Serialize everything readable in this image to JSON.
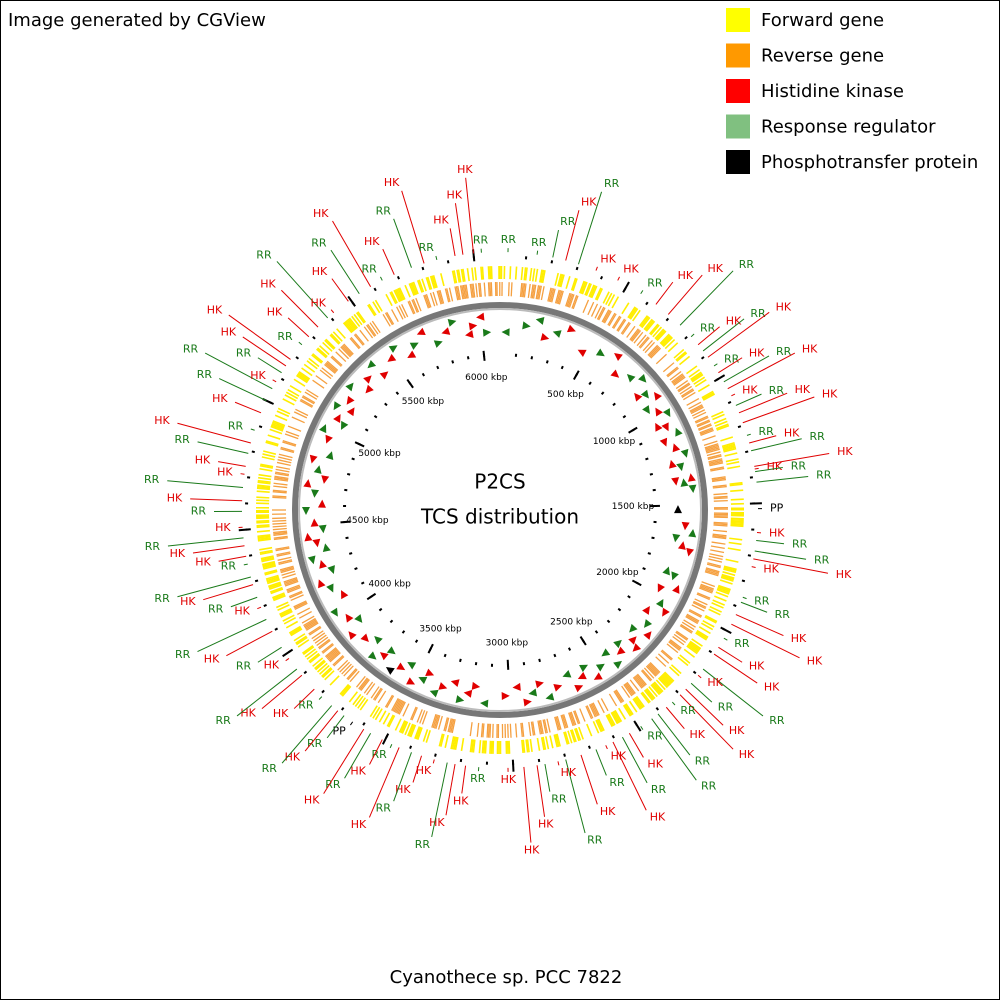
{
  "header": {
    "title": "Image generated by CGView"
  },
  "legend": [
    {
      "label": "Forward gene",
      "color": "#ffff00"
    },
    {
      "label": "Reverse gene",
      "color": "#ff9900"
    },
    {
      "label": "Histidine kinase",
      "color": "#ff0000"
    },
    {
      "label": "Response regulator",
      "color": "#80c080"
    },
    {
      "label": "Phosphotransfer protein",
      "color": "#000000"
    }
  ],
  "center": {
    "line1": "P2CS",
    "line2": "TCS distribution"
  },
  "footer": "Cyanothece sp. PCC 7822",
  "sequence_length_kbp": 6100,
  "scale": {
    "ticks": [
      {
        "value": 500,
        "label": "500 kbp"
      },
      {
        "value": 1000,
        "label": "1000 kbp"
      },
      {
        "value": 1500,
        "label": "1500 kbp"
      },
      {
        "value": 2000,
        "label": "2000 kbp"
      },
      {
        "value": 2500,
        "label": "2500 kbp"
      },
      {
        "value": 3000,
        "label": "3000 kbp"
      },
      {
        "value": 3500,
        "label": "3500 kbp"
      },
      {
        "value": 4000,
        "label": "4000 kbp"
      },
      {
        "value": 4500,
        "label": "4500 kbp"
      },
      {
        "value": 5000,
        "label": "5000 kbp"
      },
      {
        "value": 5500,
        "label": "5500 kbp"
      },
      {
        "value": 6000,
        "label": "6000 kbp"
      }
    ]
  },
  "label_colors": {
    "HK": "#e00000",
    "RR": "#1a7a1a",
    "PP": "#000000"
  },
  "features": [
    {
      "kbp": 30,
      "label": "RR"
    },
    {
      "kbp": 140,
      "label": "RR"
    },
    {
      "kbp": 200,
      "label": "RR"
    },
    {
      "kbp": 250,
      "label": "HK"
    },
    {
      "kbp": 300,
      "label": "RR"
    },
    {
      "kbp": 370,
      "label": "HK"
    },
    {
      "kbp": 460,
      "label": "HK"
    },
    {
      "kbp": 560,
      "label": "RR"
    },
    {
      "kbp": 630,
      "label": "HK"
    },
    {
      "kbp": 690,
      "label": "HK"
    },
    {
      "kbp": 750,
      "label": "RR"
    },
    {
      "kbp": 810,
      "label": "RR"
    },
    {
      "kbp": 850,
      "label": "HK"
    },
    {
      "kbp": 880,
      "label": "RR"
    },
    {
      "kbp": 910,
      "label": "HK"
    },
    {
      "kbp": 950,
      "label": "RR"
    },
    {
      "kbp": 980,
      "label": "HK"
    },
    {
      "kbp": 1020,
      "label": "RR"
    },
    {
      "kbp": 1050,
      "label": "HK"
    },
    {
      "kbp": 1080,
      "label": "HK"
    },
    {
      "kbp": 1120,
      "label": "RR"
    },
    {
      "kbp": 1150,
      "label": "HK"
    },
    {
      "kbp": 1190,
      "label": "HK"
    },
    {
      "kbp": 1240,
      "label": "RR"
    },
    {
      "kbp": 1270,
      "label": "HK"
    },
    {
      "kbp": 1300,
      "label": "RR"
    },
    {
      "kbp": 1360,
      "label": "HK"
    },
    {
      "kbp": 1370,
      "label": "HK"
    },
    {
      "kbp": 1380,
      "label": "RR"
    },
    {
      "kbp": 1420,
      "label": "RR"
    },
    {
      "kbp": 1520,
      "label": "PP"
    },
    {
      "kbp": 1610,
      "label": "HK"
    },
    {
      "kbp": 1640,
      "label": "RR"
    },
    {
      "kbp": 1680,
      "label": "RR"
    },
    {
      "kbp": 1710,
      "label": "HK"
    },
    {
      "kbp": 1740,
      "label": "HK"
    },
    {
      "kbp": 1860,
      "label": "RR"
    },
    {
      "kbp": 1880,
      "label": "RR"
    },
    {
      "kbp": 1930,
      "label": "HK"
    },
    {
      "kbp": 1970,
      "label": "HK"
    },
    {
      "kbp": 2030,
      "label": "RR"
    },
    {
      "kbp": 2070,
      "label": "HK"
    },
    {
      "kbp": 2100,
      "label": "HK"
    },
    {
      "kbp": 2170,
      "label": "RR"
    },
    {
      "kbp": 2200,
      "label": "HK"
    },
    {
      "kbp": 2240,
      "label": "RR"
    },
    {
      "kbp": 2270,
      "label": "HK"
    },
    {
      "kbp": 2300,
      "label": "HK"
    },
    {
      "kbp": 2340,
      "label": "RR"
    },
    {
      "kbp": 2370,
      "label": "HK"
    },
    {
      "kbp": 2410,
      "label": "RR"
    },
    {
      "kbp": 2440,
      "label": "RR"
    },
    {
      "kbp": 2490,
      "label": "RR"
    },
    {
      "kbp": 2540,
      "label": "HK"
    },
    {
      "kbp": 2570,
      "label": "RR"
    },
    {
      "kbp": 2610,
      "label": "HK"
    },
    {
      "kbp": 2640,
      "label": "HK"
    },
    {
      "kbp": 2680,
      "label": "RR"
    },
    {
      "kbp": 2740,
      "label": "HK"
    },
    {
      "kbp": 2800,
      "label": "RR"
    },
    {
      "kbp": 2830,
      "label": "HK"
    },
    {
      "kbp": 2880,
      "label": "RR"
    },
    {
      "kbp": 2910,
      "label": "HK"
    },
    {
      "kbp": 2960,
      "label": "HK"
    },
    {
      "kbp": 3020,
      "label": "HK"
    },
    {
      "kbp": 3130,
      "label": "RR"
    },
    {
      "kbp": 3180,
      "label": "HK"
    },
    {
      "kbp": 3220,
      "label": "HK"
    },
    {
      "kbp": 3250,
      "label": "RR"
    },
    {
      "kbp": 3300,
      "label": "HK"
    },
    {
      "kbp": 3350,
      "label": "HK"
    },
    {
      "kbp": 3390,
      "label": "RR"
    },
    {
      "kbp": 3440,
      "label": "HK"
    },
    {
      "kbp": 3470,
      "label": "RR"
    },
    {
      "kbp": 3510,
      "label": "HK"
    },
    {
      "kbp": 3560,
      "label": "RR"
    },
    {
      "kbp": 3590,
      "label": "HK"
    },
    {
      "kbp": 3640,
      "label": "PP"
    },
    {
      "kbp": 3680,
      "label": "RR"
    },
    {
      "kbp": 3710,
      "label": "HK"
    },
    {
      "kbp": 3740,
      "label": "RR"
    },
    {
      "kbp": 3790,
      "label": "RR"
    },
    {
      "kbp": 3830,
      "label": "HK"
    },
    {
      "kbp": 3900,
      "label": "HK"
    },
    {
      "kbp": 3930,
      "label": "RR"
    },
    {
      "kbp": 3980,
      "label": "HK"
    },
    {
      "kbp": 4030,
      "label": "RR"
    },
    {
      "kbp": 4100,
      "label": "HK"
    },
    {
      "kbp": 4150,
      "label": "RR"
    },
    {
      "kbp": 4200,
      "label": "HK"
    },
    {
      "kbp": 4240,
      "label": "RR"
    },
    {
      "kbp": 4290,
      "label": "HK"
    },
    {
      "kbp": 4320,
      "label": "RR"
    },
    {
      "kbp": 4370,
      "label": "RR"
    },
    {
      "kbp": 4400,
      "label": "HK"
    },
    {
      "kbp": 4440,
      "label": "HK"
    },
    {
      "kbp": 4470,
      "label": "RR"
    },
    {
      "kbp": 4510,
      "label": "HK"
    },
    {
      "kbp": 4570,
      "label": "RR"
    },
    {
      "kbp": 4610,
      "label": "HK"
    },
    {
      "kbp": 4660,
      "label": "RR"
    },
    {
      "kbp": 4710,
      "label": "HK"
    },
    {
      "kbp": 4740,
      "label": "HK"
    },
    {
      "kbp": 4790,
      "label": "RR"
    },
    {
      "kbp": 4830,
      "label": "HK"
    },
    {
      "kbp": 4880,
      "label": "RR"
    },
    {
      "kbp": 4950,
      "label": "HK"
    },
    {
      "kbp": 5000,
      "label": "RR"
    },
    {
      "kbp": 5050,
      "label": "RR"
    },
    {
      "kbp": 5080,
      "label": "HK"
    },
    {
      "kbp": 5120,
      "label": "RR"
    },
    {
      "kbp": 5150,
      "label": "HK"
    },
    {
      "kbp": 5180,
      "label": "HK"
    },
    {
      "kbp": 5250,
      "label": "RR"
    },
    {
      "kbp": 5290,
      "label": "HK"
    },
    {
      "kbp": 5340,
      "label": "HK"
    },
    {
      "kbp": 5390,
      "label": "RR"
    },
    {
      "kbp": 5420,
      "label": "HK"
    },
    {
      "kbp": 5490,
      "label": "HK"
    },
    {
      "kbp": 5540,
      "label": "RR"
    },
    {
      "kbp": 5590,
      "label": "HK"
    },
    {
      "kbp": 5640,
      "label": "RR"
    },
    {
      "kbp": 5690,
      "label": "HK"
    },
    {
      "kbp": 5760,
      "label": "RR"
    },
    {
      "kbp": 5810,
      "label": "HK"
    },
    {
      "kbp": 5860,
      "label": "RR"
    },
    {
      "kbp": 5930,
      "label": "HK"
    },
    {
      "kbp": 5960,
      "label": "HK"
    },
    {
      "kbp": 6000,
      "label": "HK"
    },
    {
      "kbp": 6030,
      "label": "RR"
    }
  ]
}
